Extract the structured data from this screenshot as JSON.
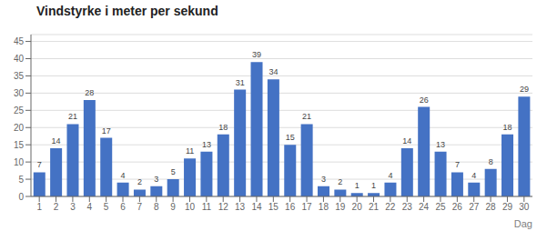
{
  "chart_data": {
    "type": "bar",
    "title": "Vindstyrke i meter per sekund",
    "xlabel": "Dag",
    "categories": [
      "1",
      "2",
      "3",
      "4",
      "5",
      "6",
      "7",
      "8",
      "9",
      "10",
      "11",
      "12",
      "13",
      "14",
      "15",
      "16",
      "17",
      "18",
      "19",
      "20",
      "21",
      "22",
      "23",
      "24",
      "25",
      "26",
      "27",
      "28",
      "29",
      "30"
    ],
    "values": [
      7,
      14,
      21,
      28,
      17,
      4,
      2,
      3,
      5,
      11,
      13,
      18,
      31,
      39,
      34,
      15,
      21,
      3,
      2,
      1,
      1,
      4,
      14,
      26,
      13,
      7,
      4,
      8,
      18,
      29
    ],
    "color": "#4472C4",
    "ylim": [
      0,
      47
    ],
    "yticks": [
      0,
      5,
      10,
      15,
      20,
      25,
      30,
      35,
      40,
      45
    ],
    "grid": true,
    "data_labels": true
  }
}
